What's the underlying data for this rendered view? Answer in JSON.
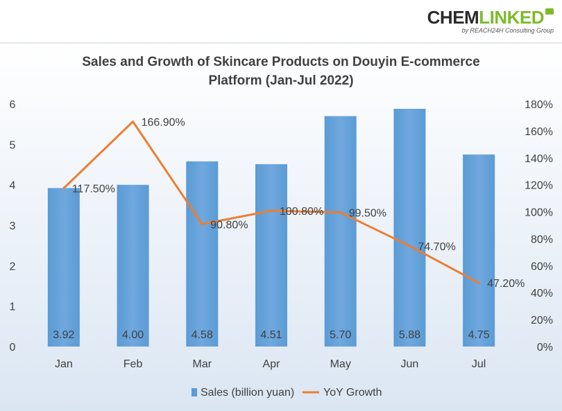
{
  "logo": {
    "part1": "CHEM",
    "part2": "LINKED",
    "tagline": "by REACH24H Consulting Group",
    "accent_color": "#7dbb2b"
  },
  "chart_data": {
    "type": "bar",
    "title_lines": [
      "Sales and Growth of Skincare Products on Douyin E-commerce",
      "Platform (Jan-Jul 2022)"
    ],
    "categories": [
      "Jan",
      "Feb",
      "Mar",
      "Apr",
      "May",
      "Jun",
      "Jul"
    ],
    "series": [
      {
        "name": "Sales (billion yuan)",
        "type": "bar",
        "axis": "left",
        "color": "#5b9bd5",
        "values": [
          3.92,
          4.0,
          4.58,
          4.51,
          5.7,
          5.88,
          4.75
        ],
        "labels": [
          "3.92",
          "4.00",
          "4.58",
          "4.51",
          "5.70",
          "5.88",
          "4.75"
        ]
      },
      {
        "name": "YoY Growth",
        "type": "line",
        "axis": "right",
        "color": "#ed7d31",
        "values": [
          117.5,
          166.9,
          90.8,
          100.8,
          99.5,
          74.7,
          47.2
        ],
        "labels": [
          "117.50%",
          "166.90%",
          "90.80%",
          "100.80%",
          "99.50%",
          "74.70%",
          "47.20%"
        ]
      }
    ],
    "y_left": {
      "min": 0,
      "max": 6,
      "ticks": [
        "0",
        "1",
        "2",
        "3",
        "4",
        "5",
        "6"
      ]
    },
    "y_right": {
      "min": 0,
      "max": 180,
      "ticks": [
        "0%",
        "20%",
        "40%",
        "60%",
        "80%",
        "100%",
        "120%",
        "140%",
        "160%",
        "180%"
      ]
    },
    "grid": false,
    "legend_position": "bottom",
    "background_top": "#ffffff",
    "background_bottom": "#dbe6f3"
  }
}
